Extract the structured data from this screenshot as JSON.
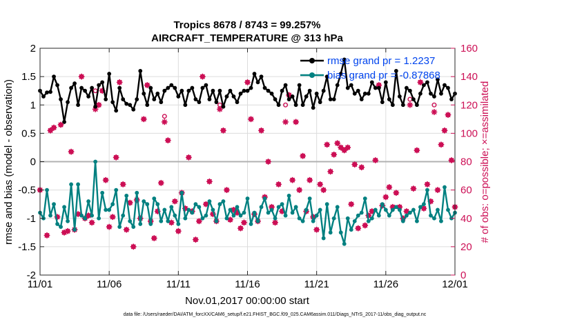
{
  "chart_data": {
    "type": "line",
    "title": "Tropics 8678 / 8743 = 99.257%",
    "subtitle": "AIRCRAFT_TEMPERATURE @ 313 hPa",
    "xlabel": "Nov.01,2017 00:00:00 start",
    "ylabel_left": "rmse and bias (model - observation)",
    "ylabel_right": "# of obs: o=possible; ×=assimilated",
    "footer": "data file: /Users/raeder/DAI/ATM_forcXX/CAM6_setup/f.e21.FHIST_BGC.f09_025.CAM6assim.011/Diags_NTrS_2017-11/obs_diag_output.nc",
    "x_range": [
      0,
      30
    ],
    "x_tick_labels": [
      "11/01",
      "11/06",
      "11/11",
      "11/16",
      "11/21",
      "11/26",
      "12/01"
    ],
    "ylim_left": [
      -2,
      2
    ],
    "y_left_tick_labels": [
      "-2",
      "-1.5",
      "-1",
      "-0.5",
      "0",
      "0.5",
      "1",
      "1.5",
      "2"
    ],
    "ylim_right": [
      0,
      160
    ],
    "y_right_tick_labels": [
      "0",
      "20",
      "40",
      "60",
      "80",
      "100",
      "120",
      "140",
      "160"
    ],
    "colors": {
      "rmse": "#000000",
      "bias": "#008080",
      "obs": "#cc0f55",
      "legend_text": "#0044ee",
      "zero_line": "#b0b0b0"
    },
    "series": [
      {
        "name": "rmse grand pr = 1.2237",
        "axis": "left",
        "x": [
          0.0,
          0.25,
          0.5,
          0.75,
          1.0,
          1.25,
          1.5,
          1.75,
          2.0,
          2.25,
          2.5,
          2.75,
          3.0,
          3.25,
          3.5,
          3.75,
          4.0,
          4.25,
          4.5,
          4.75,
          5.0,
          5.25,
          5.5,
          5.75,
          6.0,
          6.25,
          6.5,
          6.75,
          7.0,
          7.25,
          7.5,
          7.75,
          8.0,
          8.25,
          8.5,
          8.75,
          9.0,
          9.25,
          9.5,
          9.75,
          10.0,
          10.25,
          10.5,
          10.75,
          11.0,
          11.25,
          11.5,
          11.75,
          12.0,
          12.25,
          12.5,
          12.75,
          13.0,
          13.25,
          13.5,
          13.75,
          14.0,
          14.25,
          14.5,
          14.75,
          15.0,
          15.25,
          15.5,
          15.75,
          16.0,
          16.25,
          16.5,
          16.75,
          17.0,
          17.25,
          17.5,
          17.75,
          18.0,
          18.25,
          18.5,
          18.75,
          19.0,
          19.25,
          19.5,
          19.75,
          20.0,
          20.25,
          20.5,
          20.75,
          21.0,
          21.25,
          21.5,
          21.75,
          22.0,
          22.25,
          22.5,
          22.75,
          23.0,
          23.25,
          23.5,
          23.75,
          24.0,
          24.25,
          24.5,
          24.75,
          25.0,
          25.25,
          25.5,
          25.75,
          26.0,
          26.25,
          26.5,
          26.75,
          27.0,
          27.25,
          27.5,
          27.75,
          28.0,
          28.25,
          28.5,
          28.75,
          29.0,
          29.25,
          29.5,
          29.75,
          30.0
        ],
        "values": [
          1.25,
          1.15,
          1.22,
          1.23,
          1.5,
          1.35,
          1.1,
          0.7,
          1.05,
          1.3,
          1.38,
          1.0,
          1.3,
          1.25,
          1.15,
          1.3,
          0.97,
          1.35,
          1.4,
          1.1,
          1.55,
          1.05,
          0.9,
          1.3,
          1.1,
          1.02,
          1.0,
          0.92,
          1.1,
          1.6,
          1.2,
          1.0,
          1.3,
          1.1,
          1.2,
          1.05,
          1.25,
          1.3,
          1.35,
          1.3,
          1.15,
          1.25,
          1.0,
          1.25,
          1.3,
          1.1,
          1.05,
          1.3,
          1.35,
          1.1,
          1.25,
          1.05,
          1.25,
          0.97,
          1.15,
          1.25,
          1.15,
          1.05,
          1.2,
          1.25,
          1.25,
          1.3,
          1.55,
          1.4,
          1.5,
          1.3,
          1.25,
          1.2,
          1.1,
          1.0,
          1.25,
          1.35,
          1.1,
          1.15,
          1.0,
          1.35,
          1.0,
          1.15,
          1.25,
          0.95,
          1.2,
          1.05,
          1.25,
          1.5,
          1.1,
          1.1,
          1.35,
          1.55,
          1.8,
          1.3,
          1.35,
          1.2,
          1.25,
          1.1,
          1.2,
          1.2,
          1.4,
          1.3,
          1.3,
          1.05,
          1.4,
          1.1,
          1.0,
          1.6,
          1.15,
          1.0,
          1.3,
          1.25,
          1.1,
          1.0,
          1.2,
          1.35,
          1.4,
          1.2,
          1.15,
          1.45,
          1.2,
          1.35,
          1.3,
          1.1,
          1.2
        ]
      },
      {
        "name": "bias grand pr = -0.87868",
        "axis": "left",
        "x": [
          0.0,
          0.25,
          0.5,
          0.75,
          1.0,
          1.25,
          1.5,
          1.75,
          2.0,
          2.25,
          2.5,
          2.75,
          3.0,
          3.25,
          3.5,
          3.75,
          4.0,
          4.25,
          4.5,
          4.75,
          5.0,
          5.25,
          5.5,
          5.75,
          6.0,
          6.25,
          6.5,
          6.75,
          7.0,
          7.25,
          7.5,
          7.75,
          8.0,
          8.25,
          8.5,
          8.75,
          9.0,
          9.25,
          9.5,
          9.75,
          10.0,
          10.25,
          10.5,
          10.75,
          11.0,
          11.25,
          11.5,
          11.75,
          12.0,
          12.25,
          12.5,
          12.75,
          13.0,
          13.25,
          13.5,
          13.75,
          14.0,
          14.25,
          14.5,
          14.75,
          15.0,
          15.25,
          15.5,
          15.75,
          16.0,
          16.25,
          16.5,
          16.75,
          17.0,
          17.25,
          17.5,
          17.75,
          18.0,
          18.25,
          18.5,
          18.75,
          19.0,
          19.25,
          19.5,
          19.75,
          20.0,
          20.25,
          20.5,
          20.75,
          21.0,
          21.25,
          21.5,
          21.75,
          22.0,
          22.25,
          22.5,
          22.75,
          23.0,
          23.25,
          23.5,
          23.75,
          24.0,
          24.25,
          24.5,
          24.75,
          25.0,
          25.25,
          25.5,
          25.75,
          26.0,
          26.25,
          26.5,
          26.75,
          27.0,
          27.25,
          27.5,
          27.75,
          28.0,
          28.25,
          28.5,
          28.75,
          29.0,
          29.25,
          29.5,
          29.75,
          30.0
        ],
        "values": [
          -0.9,
          -1.0,
          -0.5,
          -0.95,
          -0.75,
          -1.1,
          -1.15,
          -0.8,
          -1.05,
          -0.4,
          -1.2,
          -0.4,
          -0.95,
          -1.0,
          -0.7,
          -0.95,
          0.0,
          -1.0,
          -0.55,
          -0.85,
          -0.85,
          -0.75,
          -0.5,
          -1.15,
          -0.95,
          -0.6,
          -1.05,
          -1.15,
          -0.55,
          -1.1,
          -0.7,
          -0.75,
          -1.1,
          -0.65,
          -0.75,
          -1.05,
          -0.85,
          -1.05,
          -0.8,
          -0.95,
          -1.1,
          -0.55,
          -1.0,
          -0.85,
          -0.9,
          -0.75,
          -0.8,
          -1.0,
          -0.95,
          -0.7,
          -0.85,
          -1.05,
          -0.75,
          -0.7,
          -1.0,
          -0.85,
          -0.95,
          -0.8,
          -0.95,
          -0.9,
          -0.65,
          -1.1,
          -0.9,
          -1.05,
          -0.8,
          -0.65,
          -0.9,
          -0.85,
          -1.0,
          -0.8,
          -0.75,
          -0.95,
          -0.6,
          -0.9,
          -0.8,
          -1.0,
          -1.05,
          -0.85,
          -0.65,
          -1.05,
          -0.95,
          -0.85,
          -1.35,
          -0.75,
          -1.25,
          -1.0,
          -0.8,
          -1.25,
          -1.45,
          -1.0,
          -1.2,
          -1.05,
          -0.95,
          -0.9,
          -0.65,
          -1.05,
          -1.0,
          -0.85,
          -0.95,
          -0.75,
          -0.85,
          -0.95,
          -0.85,
          -0.8,
          -0.85,
          -1.05,
          -0.95,
          -0.9,
          -0.85,
          -1.05,
          -0.8,
          -0.75,
          -0.5,
          -0.95,
          -1.0,
          -0.85,
          -1.05,
          -0.45,
          -0.85,
          -1.0,
          -0.9
        ]
      }
    ],
    "obs": {
      "axis": "right",
      "x": [
        0.0,
        0.5,
        0.75,
        1.0,
        1.25,
        1.5,
        1.75,
        2.0,
        2.25,
        2.5,
        2.75,
        3.0,
        3.25,
        3.5,
        3.75,
        4.0,
        4.25,
        4.5,
        4.75,
        5.0,
        5.25,
        5.5,
        5.75,
        6.0,
        6.25,
        6.5,
        6.75,
        7.0,
        7.25,
        7.5,
        7.75,
        8.0,
        8.25,
        8.5,
        8.75,
        9.0,
        9.25,
        9.5,
        9.75,
        10.0,
        10.25,
        10.5,
        10.75,
        11.0,
        11.25,
        11.5,
        11.75,
        12.0,
        12.25,
        12.5,
        12.75,
        13.0,
        13.25,
        13.5,
        13.75,
        14.0,
        14.25,
        14.5,
        14.75,
        15.0,
        15.25,
        15.5,
        15.75,
        16.0,
        16.25,
        16.5,
        16.75,
        17.0,
        17.25,
        17.5,
        17.75,
        18.0,
        18.25,
        18.5,
        18.75,
        19.0,
        19.25,
        19.5,
        19.75,
        20.0,
        20.25,
        20.5,
        20.75,
        21.0,
        21.25,
        21.5,
        21.75,
        22.0,
        22.25,
        22.5,
        22.75,
        23.0,
        23.25,
        23.5,
        23.75,
        24.0,
        24.25,
        24.5,
        24.75,
        25.0,
        25.25,
        25.5,
        25.75,
        26.0,
        26.25,
        26.5,
        26.75,
        27.0,
        27.25,
        27.5,
        27.75,
        28.0,
        28.25,
        28.5,
        28.75,
        29.0,
        29.25,
        29.5,
        29.75,
        30.0
      ],
      "possible": [
        60,
        28,
        102,
        104,
        41,
        106,
        30,
        31,
        87,
        32,
        43,
        140,
        40,
        42,
        37,
        130,
        120,
        130,
        67,
        34,
        41,
        83,
        136,
        64,
        32,
        51,
        20,
        53,
        40,
        110,
        134,
        38,
        26,
        45,
        65,
        112,
        95,
        37,
        52,
        31,
        58,
        47,
        83,
        45,
        25,
        38,
        140,
        50,
        66,
        43,
        38,
        120,
        102,
        60,
        39,
        46,
        44,
        33,
        37,
        136,
        110,
        43,
        38,
        102,
        55,
        80,
        48,
        37,
        64,
        45,
        120,
        127,
        67,
        108,
        60,
        84,
        45,
        67,
        41,
        32,
        64,
        60,
        92,
        73,
        85,
        93,
        90,
        88,
        90,
        50,
        78,
        33,
        76,
        35,
        42,
        45,
        81,
        134,
        49,
        55,
        62,
        48,
        58,
        48,
        40,
        45,
        124,
        61,
        88,
        136,
        47,
        64,
        52,
        120,
        60,
        92,
        102,
        113,
        81,
        48,
        95
      ],
      "assimilated": [
        60,
        28,
        102,
        104,
        41,
        106,
        30,
        31,
        87,
        32,
        43,
        140,
        40,
        42,
        37,
        117,
        120,
        130,
        67,
        34,
        41,
        83,
        136,
        64,
        32,
        51,
        20,
        53,
        40,
        110,
        134,
        38,
        26,
        45,
        65,
        108,
        95,
        37,
        52,
        31,
        58,
        47,
        83,
        45,
        25,
        38,
        140,
        50,
        66,
        43,
        38,
        117,
        102,
        60,
        39,
        46,
        44,
        33,
        37,
        136,
        110,
        43,
        38,
        102,
        55,
        80,
        48,
        37,
        64,
        45,
        108,
        127,
        67,
        108,
        60,
        84,
        45,
        67,
        41,
        32,
        64,
        60,
        92,
        73,
        85,
        93,
        90,
        88,
        90,
        50,
        78,
        33,
        76,
        35,
        42,
        45,
        81,
        134,
        49,
        55,
        62,
        48,
        58,
        48,
        40,
        45,
        120,
        61,
        88,
        136,
        47,
        64,
        52,
        115,
        60,
        92,
        102,
        113,
        81,
        48,
        95
      ]
    }
  }
}
